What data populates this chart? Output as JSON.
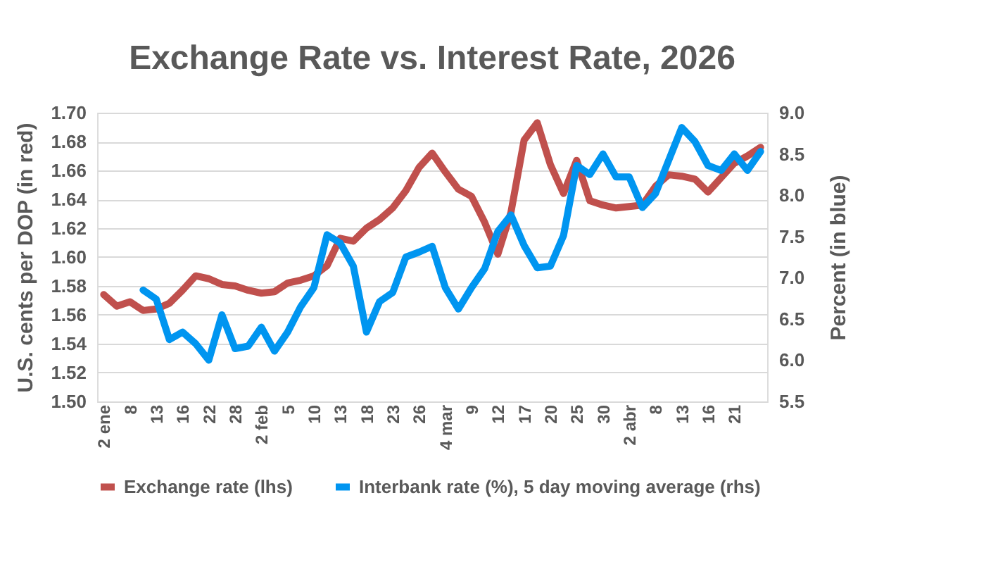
{
  "chart_data": {
    "type": "line",
    "title": "Exchange Rate vs. Interest Rate, 2026",
    "ylabel": "U.S. cents per DOP (in red)",
    "y2label": "Percent (in blue)",
    "categories": [
      "2 ene",
      null,
      "8",
      null,
      "13",
      null,
      "16",
      null,
      "22",
      null,
      "28",
      null,
      "2 feb",
      null,
      "5",
      null,
      "10",
      null,
      "13",
      null,
      "18",
      null,
      "23",
      null,
      "26",
      null,
      "4 mar",
      null,
      "9",
      null,
      "12",
      null,
      "17",
      null,
      "20",
      null,
      "25",
      null,
      "30",
      null,
      "2 abr",
      null,
      "8",
      null,
      "13",
      null,
      "16",
      null,
      "21",
      null,
      null
    ],
    "series": [
      {
        "name": "Exchange rate (lhs)",
        "color": "#c0504d",
        "values": [
          1.574,
          1.566,
          1.569,
          1.563,
          1.564,
          1.568,
          1.577,
          1.587,
          1.585,
          1.581,
          1.58,
          1.577,
          1.575,
          1.576,
          1.582,
          1.584,
          1.587,
          1.594,
          1.613,
          1.611,
          1.62,
          1.626,
          1.634,
          1.646,
          1.662,
          1.672,
          1.659,
          1.647,
          1.642,
          1.624,
          1.602,
          1.631,
          1.681,
          1.693,
          1.664,
          1.644,
          1.667,
          1.639,
          1.636,
          1.634,
          1.635,
          1.636,
          1.649,
          1.657,
          1.656,
          1.654,
          1.645,
          1.655,
          1.665,
          1.67,
          1.676
        ]
      },
      {
        "name": "Interbank rate (%), 5 day moving average (rhs)",
        "color": "#0095f0",
        "axis": "y2",
        "values": [
          null,
          null,
          null,
          6.85,
          6.74,
          6.25,
          6.34,
          6.2,
          6.0,
          6.55,
          6.14,
          6.17,
          6.4,
          6.11,
          6.34,
          6.65,
          6.88,
          7.52,
          7.42,
          7.14,
          6.34,
          6.71,
          6.82,
          7.25,
          7.31,
          7.38,
          6.88,
          6.62,
          6.88,
          7.11,
          7.56,
          7.76,
          7.39,
          7.12,
          7.14,
          7.51,
          8.36,
          8.25,
          8.5,
          8.22,
          8.22,
          7.85,
          8.02,
          8.42,
          8.82,
          8.65,
          8.36,
          8.3,
          8.5,
          8.3,
          8.53
        ]
      }
    ],
    "ylim": [
      1.5,
      1.7
    ],
    "yticks": [
      {
        "value": 1.5,
        "label": "1.50"
      },
      {
        "value": 1.52,
        "label": "1.52"
      },
      {
        "value": 1.54,
        "label": "1.54"
      },
      {
        "value": 1.56,
        "label": "1.56"
      },
      {
        "value": 1.58,
        "label": "1.58"
      },
      {
        "value": 1.6,
        "label": "1.60"
      },
      {
        "value": 1.62,
        "label": "1.62"
      },
      {
        "value": 1.64,
        "label": "1.64"
      },
      {
        "value": 1.66,
        "label": "1.66"
      },
      {
        "value": 1.68,
        "label": "1.68"
      },
      {
        "value": 1.7,
        "label": "1.70"
      }
    ],
    "y2lim": [
      5.5,
      9.0
    ],
    "y2ticks": [
      5.5,
      {
        "value": 6,
        "label": "6.0"
      },
      6.5,
      {
        "value": 7,
        "label": "7.0"
      },
      7.5,
      {
        "value": 8,
        "label": "8.0"
      },
      8.5,
      {
        "value": 9,
        "label": "9.0"
      }
    ],
    "grid": "y",
    "legend": "bottom",
    "marker": "none",
    "line_style": "solid"
  }
}
